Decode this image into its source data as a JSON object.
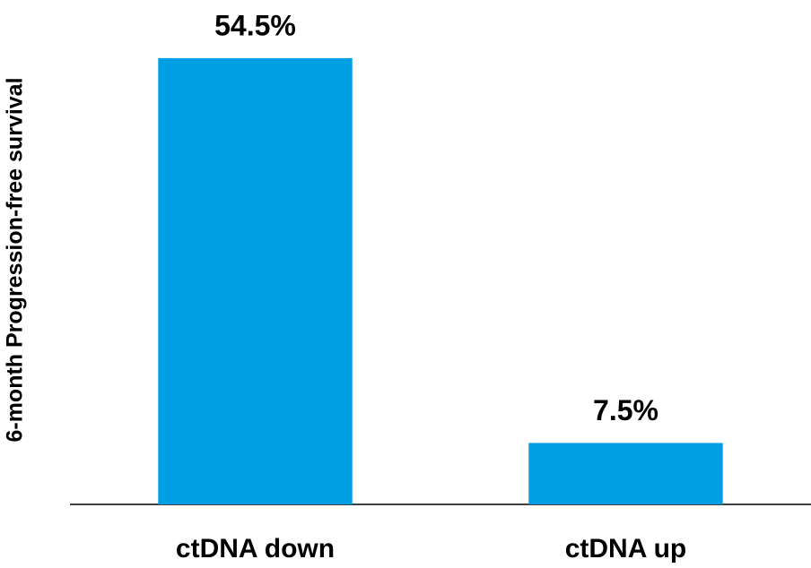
{
  "chart_data": {
    "type": "bar",
    "y_label": "6-month Progression-free survival",
    "categories": [
      "ctDNA down",
      "ctDNA up"
    ],
    "values": [
      54.5,
      7.5
    ],
    "value_labels": [
      "54.5%",
      "7.5%"
    ],
    "color": "#009fe3",
    "ylim": [
      0,
      60
    ]
  }
}
